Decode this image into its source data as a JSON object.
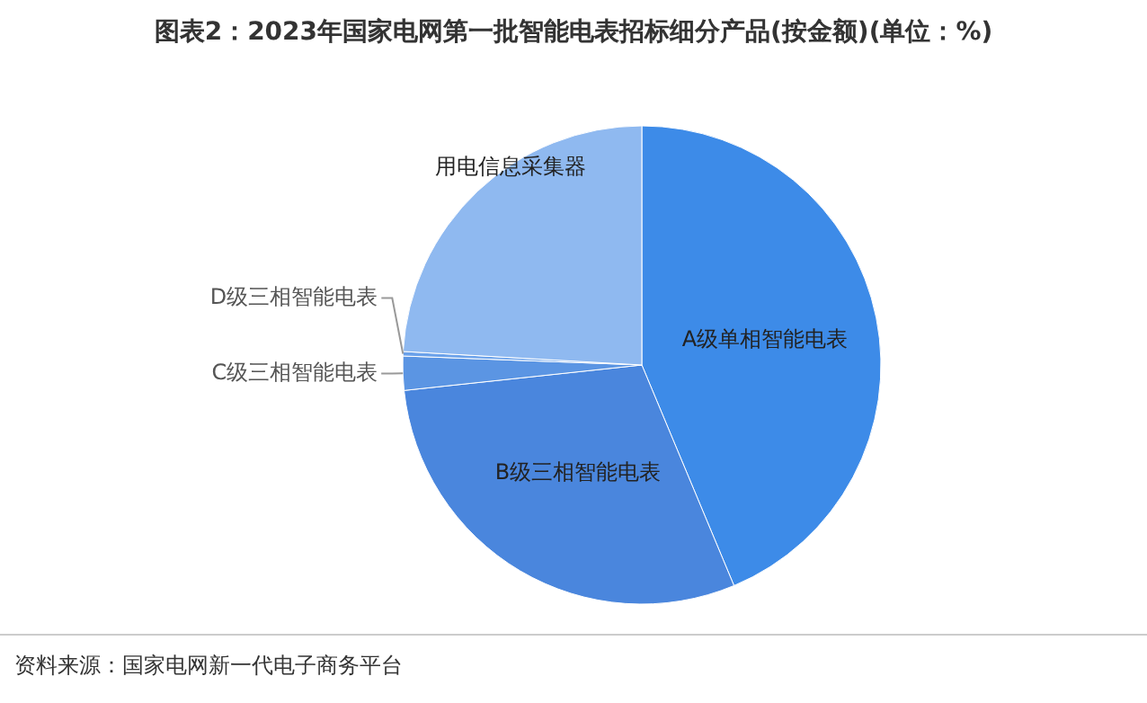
{
  "chart_data": {
    "type": "pie",
    "title": "图表2：2023年国家电网第一批智能电表招标细分产品(按金额)(单位：%)",
    "categories": [
      "A级单相智能电表",
      "B级三相智能电表",
      "C级三相智能电表",
      "D级三相智能电表",
      "用电信息采集器"
    ],
    "values": [
      43.7,
      29.6,
      2.3,
      0.3,
      24.1
    ],
    "colors": [
      "#3d8be8",
      "#4a86dd",
      "#5b95e3",
      "#6aa1ea",
      "#8fb9f0"
    ],
    "annotations": [
      "资料来源：国家电网新一代电子商务平台"
    ]
  }
}
